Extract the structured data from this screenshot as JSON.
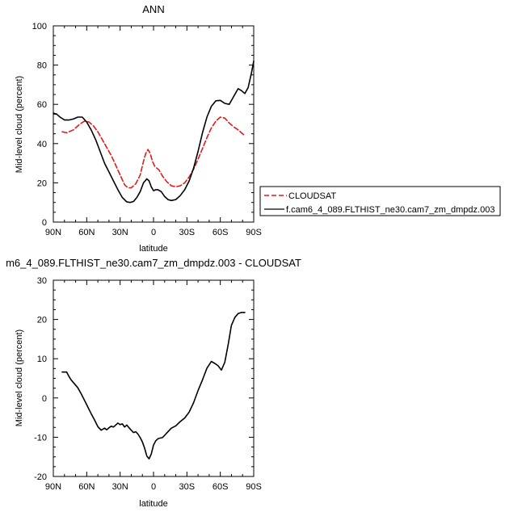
{
  "colors": {
    "cloudsat": "#e01b1b",
    "model": "#000000"
  },
  "chart_data": [
    {
      "type": "line",
      "title": "ANN",
      "xlabel": "latitude",
      "ylabel": "Mid-level cloud (percent)",
      "xlim": [
        -90,
        90
      ],
      "ylim": [
        0,
        100
      ],
      "xticks": [
        -90,
        -60,
        -30,
        0,
        30,
        60,
        90
      ],
      "xtick_labels": [
        "90N",
        "60N",
        "30N",
        "0",
        "30S",
        "60S",
        "90S"
      ],
      "yticks": [
        0,
        20,
        40,
        60,
        80,
        100
      ],
      "ytick_labels": [
        "0",
        "20",
        "40",
        "60",
        "80",
        "100"
      ],
      "legend": {
        "placement": "right-outside"
      },
      "series": [
        {
          "name": "CLOUDSAT",
          "style": "dashed",
          "color": "#e01b1b",
          "x": [
            -82,
            -78,
            -72,
            -66,
            -62,
            -58,
            -54,
            -50,
            -46,
            -42,
            -38,
            -34,
            -30,
            -26,
            -23,
            -20,
            -16,
            -12,
            -9,
            -7,
            -5,
            -3,
            -1,
            1,
            3,
            5,
            8,
            12,
            16,
            20,
            24,
            28,
            32,
            36,
            40,
            44,
            48,
            52,
            56,
            60,
            64,
            68,
            72,
            76,
            80,
            82
          ],
          "y": [
            46,
            45.5,
            47,
            50,
            51.5,
            51,
            49,
            46,
            42,
            38,
            34,
            29,
            24,
            19,
            17.5,
            17.5,
            19.5,
            24,
            31,
            35,
            37,
            35,
            31,
            28.5,
            27.5,
            26.5,
            23.5,
            20.5,
            18.5,
            18,
            18.5,
            20,
            23,
            27,
            32,
            37.5,
            43,
            48,
            51.5,
            53.5,
            53,
            50.5,
            48.5,
            47,
            45,
            44
          ]
        },
        {
          "name": "f.cam6_4_089.FLTHIST_ne30.cam7_zm_dmpdz.003",
          "style": "solid",
          "color": "#000000",
          "x": [
            -90,
            -87,
            -84,
            -80,
            -76,
            -72,
            -68,
            -64,
            -60,
            -56,
            -52,
            -48,
            -44,
            -40,
            -36,
            -32,
            -28,
            -24,
            -21,
            -18,
            -15,
            -12,
            -9,
            -6,
            -4,
            -2,
            0,
            2,
            4,
            7,
            10,
            13,
            16,
            20,
            24,
            28,
            32,
            36,
            40,
            44,
            48,
            52,
            56,
            60,
            64,
            68,
            72,
            76,
            79,
            82,
            85,
            88,
            90
          ],
          "y": [
            55.5,
            55,
            53.5,
            52,
            52,
            52.5,
            53.5,
            53.5,
            51,
            47,
            42,
            36,
            30,
            25.5,
            21,
            16.5,
            12.5,
            10.3,
            10,
            10.5,
            12.5,
            15.5,
            20,
            22,
            21,
            18,
            16,
            16.5,
            16.5,
            15.5,
            13,
            11.5,
            11,
            11.5,
            13.5,
            16.5,
            21,
            27.5,
            36,
            45.5,
            53.5,
            59,
            61.8,
            62,
            60.5,
            60,
            64,
            68,
            67,
            65.5,
            68.5,
            76,
            82
          ]
        }
      ]
    },
    {
      "type": "line",
      "title": "m6_4_089.FLTHIST_ne30.cam7_zm_dmpdz.003 - CLOUDSAT",
      "xlabel": "latitude",
      "ylabel": "Mid-level cloud (percent)",
      "xlim": [
        -90,
        90
      ],
      "ylim": [
        -20,
        30
      ],
      "xticks": [
        -90,
        -60,
        -30,
        0,
        30,
        60,
        90
      ],
      "xtick_labels": [
        "90N",
        "60N",
        "30N",
        "0",
        "30S",
        "60S",
        "90S"
      ],
      "yticks": [
        -20,
        -10,
        0,
        10,
        20,
        30
      ],
      "ytick_labels": [
        "-20",
        "-10",
        "0",
        "10",
        "20",
        "30"
      ],
      "series": [
        {
          "name": "",
          "style": "solid",
          "color": "#000000",
          "x": [
            -82,
            -78,
            -76,
            -74,
            -71,
            -68,
            -65,
            -62,
            -59,
            -56,
            -53,
            -50,
            -47,
            -44,
            -42,
            -40,
            -38,
            -36,
            -34,
            -32,
            -30,
            -28,
            -26,
            -24,
            -22,
            -20,
            -18,
            -16,
            -14,
            -12,
            -10,
            -8,
            -6,
            -4,
            -2,
            0,
            2,
            4,
            6,
            8,
            10,
            13,
            16,
            20,
            24,
            28,
            32,
            36,
            40,
            44,
            48,
            52,
            55,
            58,
            61,
            64,
            67,
            70,
            73,
            76,
            79,
            82
          ],
          "y": [
            6.6,
            6.6,
            5.5,
            4.6,
            3.6,
            2.6,
            1.1,
            -0.6,
            -2.3,
            -4.0,
            -5.6,
            -7.3,
            -8.2,
            -7.7,
            -8.1,
            -7.6,
            -7.2,
            -7.4,
            -6.9,
            -6.4,
            -6.8,
            -6.6,
            -7.4,
            -6.9,
            -7.6,
            -8.2,
            -8.8,
            -8.6,
            -9.2,
            -10.1,
            -11.2,
            -12.8,
            -14.8,
            -15.5,
            -14.3,
            -12.0,
            -10.9,
            -10.4,
            -10.2,
            -10.1,
            -9.5,
            -8.6,
            -7.7,
            -7.1,
            -6.0,
            -5.1,
            -3.6,
            -1.2,
            1.9,
            4.6,
            7.6,
            9.3,
            8.8,
            8.2,
            7.1,
            9.1,
            13.5,
            18.5,
            20.5,
            21.5,
            21.8,
            21.8
          ]
        }
      ]
    }
  ]
}
